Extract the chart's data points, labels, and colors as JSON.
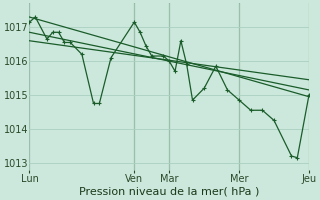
{
  "background_color": "#cce8dc",
  "grid_color": "#aad0c0",
  "line_color": "#1a5c2a",
  "plot_bg": "#cce8dc",
  "xlabel": "Pression niveau de la mer( hPa )",
  "ylim": [
    1012.8,
    1017.7
  ],
  "yticks": [
    1013,
    1014,
    1015,
    1016,
    1017
  ],
  "x_tick_labels": [
    "Lun",
    "Ven",
    "Mar",
    "Mer",
    "Jeu"
  ],
  "x_tick_positions": [
    0.0,
    9.0,
    12.0,
    18.0,
    24.0
  ],
  "xlim": [
    0,
    24
  ],
  "series1_x": [
    0.0,
    0.5,
    1.5,
    2.0,
    2.5,
    3.0,
    3.5,
    4.5,
    5.5,
    6.0,
    7.0,
    9.0,
    9.5,
    10.0,
    10.5,
    11.5,
    12.0,
    12.5,
    13.0,
    13.5,
    14.0,
    15.0,
    16.0,
    17.0,
    18.0,
    19.0,
    20.0,
    21.0,
    22.5,
    23.0,
    24.0
  ],
  "series1_y": [
    1017.15,
    1017.3,
    1016.65,
    1016.85,
    1016.85,
    1016.55,
    1016.55,
    1016.2,
    1014.75,
    1014.75,
    1016.1,
    1017.15,
    1016.85,
    1016.45,
    1016.15,
    1016.15,
    1016.0,
    1015.7,
    1016.6,
    1015.9,
    1014.85,
    1015.2,
    1015.85,
    1015.15,
    1014.85,
    1014.55,
    1014.55,
    1014.25,
    1013.2,
    1013.15,
    1015.0
  ],
  "trend1_x": [
    0.0,
    24.0
  ],
  "trend1_y": [
    1017.3,
    1014.95
  ],
  "trend2_x": [
    0.0,
    24.0
  ],
  "trend2_y": [
    1016.85,
    1015.15
  ],
  "trend3_x": [
    0.0,
    24.0
  ],
  "trend3_y": [
    1016.6,
    1015.45
  ],
  "xlabel_fontsize": 8,
  "tick_fontsize": 7,
  "lw_main": 0.9,
  "lw_trend": 0.9,
  "marker_size": 2.5
}
